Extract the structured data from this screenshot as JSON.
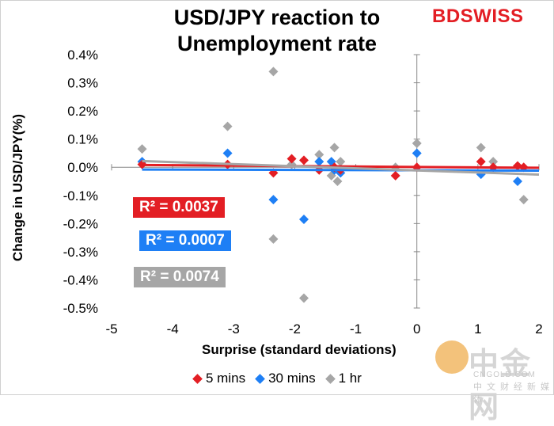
{
  "title": "USD/JPY reaction to Unemployment rate",
  "title_line1": "USD/JPY reaction to",
  "title_line2": "Unemployment rate",
  "logo": {
    "part1": "BD",
    "part2": "SWISS"
  },
  "watermark": {
    "zh": "中金网",
    "en": "CNGOLD.COM",
    "cn": "中文财经新媒体"
  },
  "colors": {
    "s5": "#e31e24",
    "s30": "#1e7ff5",
    "s1h": "#a6a6a6"
  },
  "chart_data": {
    "type": "scatter",
    "xlabel": "Surprise (standard deviations)",
    "ylabel": "Change in USD/JPY(%)",
    "xlim": [
      -5,
      2
    ],
    "ylim": [
      -0.5,
      0.4
    ],
    "xticks": [
      "-5",
      "-4",
      "-3",
      "-2",
      "-1",
      "0",
      "1",
      "2"
    ],
    "xtick_values": [
      -5,
      -4,
      -3,
      -2,
      -1,
      0,
      1,
      2
    ],
    "yticks": [
      "0.4%",
      "0.3%",
      "0.2%",
      "0.1%",
      "0.0%",
      "-0.1%",
      "-0.2%",
      "-0.3%",
      "-0.4%",
      "-0.5%"
    ],
    "ytick_values": [
      0.4,
      0.3,
      0.2,
      0.1,
      0.0,
      -0.1,
      -0.2,
      -0.3,
      -0.4,
      -0.5
    ],
    "series": [
      {
        "name": "5 mins",
        "color": "#e31e24",
        "points": [
          [
            -4.5,
            0.01
          ],
          [
            -3.1,
            0.01
          ],
          [
            -2.35,
            -0.02
          ],
          [
            -2.05,
            0.03
          ],
          [
            -1.85,
            0.025
          ],
          [
            -1.6,
            -0.01
          ],
          [
            -1.35,
            0.0
          ],
          [
            -1.25,
            -0.01
          ],
          [
            -0.35,
            -0.03
          ],
          [
            0.0,
            0.0
          ],
          [
            1.05,
            0.02
          ],
          [
            1.25,
            0.0
          ],
          [
            1.65,
            0.005
          ],
          [
            1.75,
            0.0
          ]
        ],
        "trend": [
          [
            -4.5,
            0.008
          ],
          [
            2.0,
            -0.002
          ]
        ],
        "r2": "R² = 0.0037"
      },
      {
        "name": "30 mins",
        "color": "#1e7ff5",
        "points": [
          [
            -4.5,
            0.02
          ],
          [
            -3.1,
            0.05
          ],
          [
            -2.35,
            -0.115
          ],
          [
            -1.85,
            -0.185
          ],
          [
            -1.6,
            0.02
          ],
          [
            -1.4,
            0.02
          ],
          [
            -1.35,
            -0.01
          ],
          [
            -1.25,
            -0.02
          ],
          [
            0.0,
            0.05
          ],
          [
            1.05,
            -0.025
          ],
          [
            1.65,
            -0.05
          ]
        ],
        "trend": [
          [
            -4.5,
            -0.008
          ],
          [
            2.0,
            -0.012
          ]
        ],
        "r2": "R² = 0.0007"
      },
      {
        "name": "1 hr",
        "color": "#a6a6a6",
        "points": [
          [
            -4.5,
            0.065
          ],
          [
            -3.1,
            0.145
          ],
          [
            -2.35,
            0.34
          ],
          [
            -2.35,
            -0.255
          ],
          [
            -2.05,
            0.01
          ],
          [
            -1.85,
            -0.465
          ],
          [
            -1.6,
            0.045
          ],
          [
            -1.4,
            -0.03
          ],
          [
            -1.35,
            0.07
          ],
          [
            -1.3,
            -0.05
          ],
          [
            -1.25,
            0.02
          ],
          [
            -0.35,
            0.0
          ],
          [
            0.0,
            0.085
          ],
          [
            1.05,
            0.07
          ],
          [
            1.25,
            0.02
          ],
          [
            1.75,
            -0.115
          ]
        ],
        "trend": [
          [
            -4.5,
            0.022
          ],
          [
            2.0,
            -0.026
          ]
        ],
        "r2": "R² = 0.0074"
      }
    ]
  }
}
